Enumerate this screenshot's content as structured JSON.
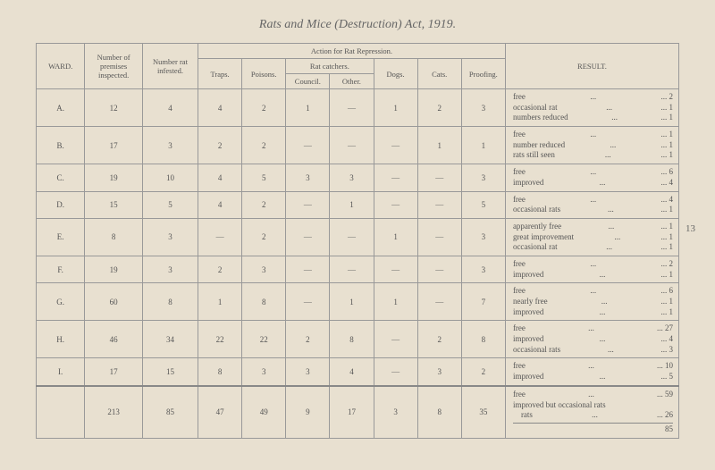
{
  "title": "Rats and Mice (Destruction) Act, 1919.",
  "page_number": "13",
  "headers": {
    "ward": "WARD.",
    "premises": "Number of premises inspected.",
    "infested": "Number rat infested.",
    "action": "Action for Rat Repression.",
    "traps": "Traps.",
    "poisons": "Poisons.",
    "catchers": "Rat catchers.",
    "council": "Council.",
    "other": "Other.",
    "dogs": "Dogs.",
    "cats": "Cats.",
    "proofing": "Proofing.",
    "result": "RESULT."
  },
  "rows": [
    {
      "ward": "A.",
      "premises": "12",
      "infested": "4",
      "traps": "4",
      "poisons": "2",
      "council": "1",
      "other": "—",
      "dogs": "1",
      "cats": "2",
      "proofing": "3",
      "result": [
        [
          "free",
          "2"
        ],
        [
          "occasional rat",
          "1"
        ],
        [
          "numbers reduced",
          "1"
        ]
      ]
    },
    {
      "ward": "B.",
      "premises": "17",
      "infested": "3",
      "traps": "2",
      "poisons": "2",
      "council": "—",
      "other": "—",
      "dogs": "—",
      "cats": "1",
      "proofing": "1",
      "result": [
        [
          "free",
          "1"
        ],
        [
          "number reduced",
          "1"
        ],
        [
          "rats still seen",
          "1"
        ]
      ]
    },
    {
      "ward": "C.",
      "premises": "19",
      "infested": "10",
      "traps": "4",
      "poisons": "5",
      "council": "3",
      "other": "3",
      "dogs": "—",
      "cats": "—",
      "proofing": "3",
      "result": [
        [
          "free",
          "6"
        ],
        [
          "improved",
          "4"
        ]
      ]
    },
    {
      "ward": "D.",
      "premises": "15",
      "infested": "5",
      "traps": "4",
      "poisons": "2",
      "council": "—",
      "other": "1",
      "dogs": "—",
      "cats": "—",
      "proofing": "5",
      "result": [
        [
          "free",
          "4"
        ],
        [
          "occasional rats",
          "1"
        ]
      ]
    },
    {
      "ward": "E.",
      "premises": "8",
      "infested": "3",
      "traps": "—",
      "poisons": "2",
      "council": "—",
      "other": "—",
      "dogs": "1",
      "cats": "—",
      "proofing": "3",
      "result": [
        [
          "apparently free",
          "1"
        ],
        [
          "great improvement",
          "1"
        ],
        [
          "occasional rat",
          "1"
        ]
      ]
    },
    {
      "ward": "F.",
      "premises": "19",
      "infested": "3",
      "traps": "2",
      "poisons": "3",
      "council": "—",
      "other": "—",
      "dogs": "—",
      "cats": "—",
      "proofing": "3",
      "result": [
        [
          "free",
          "2"
        ],
        [
          "improved",
          "1"
        ]
      ]
    },
    {
      "ward": "G.",
      "premises": "60",
      "infested": "8",
      "traps": "1",
      "poisons": "8",
      "council": "—",
      "other": "1",
      "dogs": "1",
      "cats": "—",
      "proofing": "7",
      "result": [
        [
          "free",
          "6"
        ],
        [
          "nearly free",
          "1"
        ],
        [
          "improved",
          "1"
        ]
      ]
    },
    {
      "ward": "H.",
      "premises": "46",
      "infested": "34",
      "traps": "22",
      "poisons": "22",
      "council": "2",
      "other": "8",
      "dogs": "—",
      "cats": "2",
      "proofing": "8",
      "result": [
        [
          "free",
          "27"
        ],
        [
          "improved",
          "4"
        ],
        [
          "occasional rats",
          "3"
        ]
      ]
    },
    {
      "ward": "I.",
      "premises": "17",
      "infested": "15",
      "traps": "8",
      "poisons": "3",
      "council": "3",
      "other": "4",
      "dogs": "—",
      "cats": "3",
      "proofing": "2",
      "result": [
        [
          "free",
          "10"
        ],
        [
          "improved",
          "5"
        ]
      ]
    }
  ],
  "totals": {
    "premises": "213",
    "infested": "85",
    "traps": "47",
    "poisons": "49",
    "council": "9",
    "other": "17",
    "dogs": "3",
    "cats": "8",
    "proofing": "35",
    "result_free": "59",
    "result_improved_label": "improved but occasional rats",
    "result_improved": "26",
    "grand": "85"
  }
}
